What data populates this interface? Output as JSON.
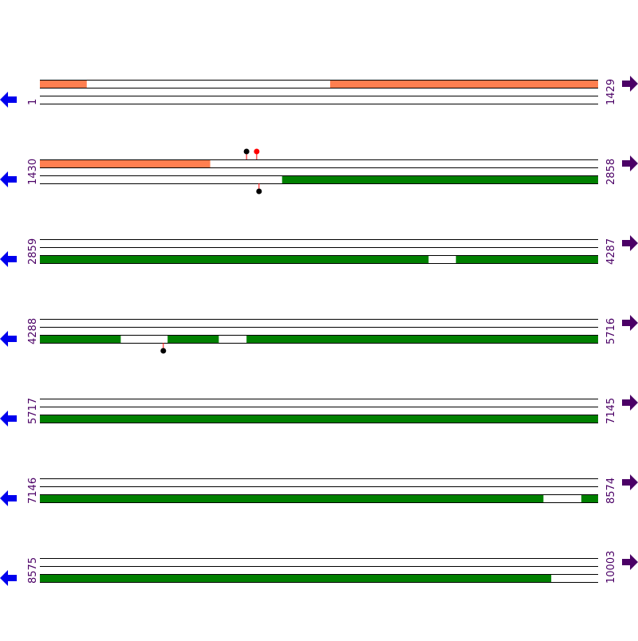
{
  "rows": [
    {
      "start": "1",
      "end": "1429",
      "top": [
        [
          1,
          120
        ],
        [
          744,
          1429
        ]
      ],
      "bottom": [],
      "pins": []
    },
    {
      "start": "1430",
      "end": "2858",
      "top": [
        [
          1430,
          1865
        ]
      ],
      "bottom": [
        [
          2050,
          2858
        ]
      ],
      "pins": [
        {
          "pos": 1959,
          "strand": "top",
          "color": "#000000"
        },
        {
          "pos": 1985,
          "strand": "top",
          "color": "#ff0000"
        },
        {
          "pos": 1991,
          "strand": "bottom",
          "color": "#000000"
        }
      ]
    },
    {
      "start": "2859",
      "end": "4287",
      "top": [],
      "bottom": [
        [
          2859,
          3853
        ],
        [
          3924,
          4287
        ]
      ],
      "pins": []
    },
    {
      "start": "4288",
      "end": "5716",
      "top": [],
      "bottom": [
        [
          4288,
          4494
        ],
        [
          4615,
          4745
        ],
        [
          4817,
          5716
        ]
      ],
      "pins": [
        {
          "pos": 4604,
          "strand": "bottom",
          "color": "#000000"
        }
      ]
    },
    {
      "start": "5717",
      "end": "7145",
      "top": [],
      "bottom": [
        [
          5717,
          7145
        ]
      ],
      "pins": []
    },
    {
      "start": "7146",
      "end": "8574",
      "top": [],
      "bottom": [
        [
          7146,
          8434
        ],
        [
          8532,
          8574
        ]
      ],
      "pins": []
    },
    {
      "start": "8575",
      "end": "10003",
      "top": [],
      "bottom": [
        [
          8575,
          9883
        ]
      ],
      "pins": []
    }
  ],
  "top_color": "#ff7f50",
  "bottom_color": "#008000"
}
